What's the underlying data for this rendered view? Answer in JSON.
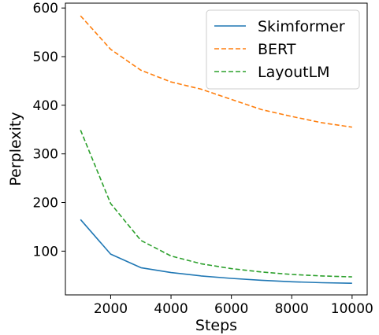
{
  "chart_data": {
    "type": "line",
    "xlabel": "Steps",
    "ylabel": "Perplexity",
    "xlim": [
      500,
      10500
    ],
    "ylim": [
      10,
      610
    ],
    "xticks": [
      2000,
      4000,
      6000,
      8000,
      10000
    ],
    "yticks": [
      100,
      200,
      300,
      400,
      500,
      600
    ],
    "grid": false,
    "legend_position": "top-right",
    "x": [
      1000,
      2000,
      3000,
      4000,
      5000,
      6000,
      7000,
      8000,
      9000,
      10000
    ],
    "series": [
      {
        "name": "Skimformer",
        "color": "#1f77b4",
        "linestyle": "solid",
        "values": [
          165,
          94,
          66,
          56,
          49,
          44,
          40,
          37,
          35,
          34
        ]
      },
      {
        "name": "BERT",
        "color": "#ff7f0e",
        "linestyle": "dashed",
        "values": [
          584,
          515,
          472,
          448,
          433,
          412,
          391,
          377,
          364,
          355
        ]
      },
      {
        "name": "LayoutLM",
        "color": "#2ca02c",
        "linestyle": "dashed",
        "values": [
          349,
          198,
          122,
          90,
          74,
          64,
          57,
          52,
          49,
          47
        ]
      }
    ]
  }
}
